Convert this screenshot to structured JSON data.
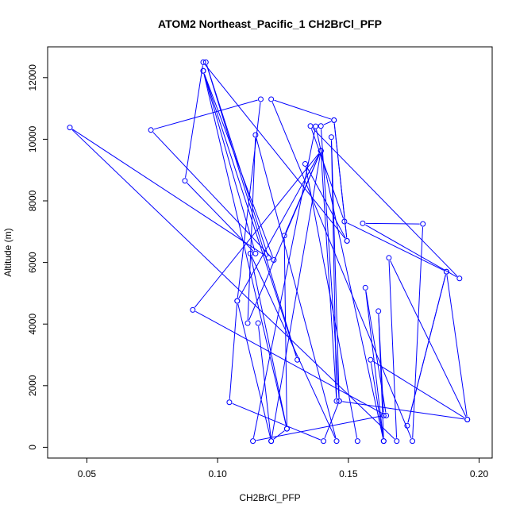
{
  "chart_data": {
    "type": "line",
    "title": "ATOM2 Northeast_Pacific_1 CH2BrCl_PFP",
    "xlabel": "CH2BrCl_PFP",
    "ylabel": "Altitude (m)",
    "xlim": [
      0.035,
      0.205
    ],
    "ylim": [
      -350,
      13000
    ],
    "x_ticks": [
      0.05,
      0.1,
      0.15,
      0.2
    ],
    "x_tick_labels": [
      "0.05",
      "0.10",
      "0.15",
      "0.20"
    ],
    "y_ticks": [
      0,
      2000,
      4000,
      6000,
      8000,
      10000,
      12000
    ],
    "y_tick_labels": [
      "0",
      "2000",
      "4000",
      "6000",
      "8000",
      "10000",
      "12000"
    ],
    "grid": false,
    "series": [
      {
        "color": "#0000ff",
        "marker": "open-circle",
        "points": [
          [
            0.1535,
            200
          ],
          [
            0.1335,
            9200
          ],
          [
            0.1495,
            6700
          ],
          [
            0.1445,
            10620
          ],
          [
            0.1205,
            11300
          ],
          [
            0.1745,
            200
          ],
          [
            0.1785,
            7250
          ],
          [
            0.1555,
            7270
          ],
          [
            0.1925,
            5480
          ],
          [
            0.1355,
            10430
          ],
          [
            0.1485,
            7330
          ],
          [
            0.1875,
            5700
          ],
          [
            0.1725,
            700
          ],
          [
            0.1875,
            5700
          ],
          [
            0.1955,
            900
          ],
          [
            0.1465,
            1500
          ],
          [
            0.1435,
            10070
          ],
          [
            0.1455,
            1500
          ],
          [
            0.1395,
            9620
          ],
          [
            0.1115,
            4030
          ],
          [
            0.1145,
            10140
          ],
          [
            0.1455,
            200
          ],
          [
            0.1125,
            6290
          ],
          [
            0.1265,
            600
          ],
          [
            0.1205,
            200
          ],
          [
            0.1395,
            9620
          ],
          [
            0.1075,
            4750
          ],
          [
            0.1165,
            11300
          ],
          [
            0.0745,
            10300
          ],
          [
            0.1215,
            6080
          ],
          [
            0.0945,
            12220
          ],
          [
            0.1305,
            2840
          ],
          [
            0.0955,
            12500
          ],
          [
            0.1195,
            6150
          ],
          [
            0.0435,
            10380
          ],
          [
            0.1685,
            200
          ],
          [
            0.1655,
            6150
          ],
          [
            0.1955,
            900
          ],
          [
            0.1585,
            2840
          ],
          [
            0.1635,
            200
          ],
          [
            0.1615,
            4420
          ],
          [
            0.1635,
            1030
          ],
          [
            0.1135,
            200
          ],
          [
            0.1375,
            10420
          ],
          [
            0.1635,
            200
          ],
          [
            0.1565,
            5180
          ],
          [
            0.1645,
            1030
          ],
          [
            0.0905,
            4460
          ],
          [
            0.1395,
            9620
          ],
          [
            0.1255,
            6870
          ],
          [
            0.1265,
            600
          ],
          [
            0.0945,
            12220
          ],
          [
            0.1145,
            6290
          ],
          [
            0.0875,
            8650
          ],
          [
            0.0945,
            12500
          ],
          [
            0.1495,
            6700
          ],
          [
            0.1445,
            10620
          ],
          [
            0.1395,
            10430
          ],
          [
            0.1465,
            1500
          ],
          [
            0.1405,
            200
          ],
          [
            0.1045,
            1460
          ],
          [
            0.1075,
            4750
          ],
          [
            0.1205,
            200
          ],
          [
            0.1155,
            4030
          ]
        ]
      }
    ]
  }
}
